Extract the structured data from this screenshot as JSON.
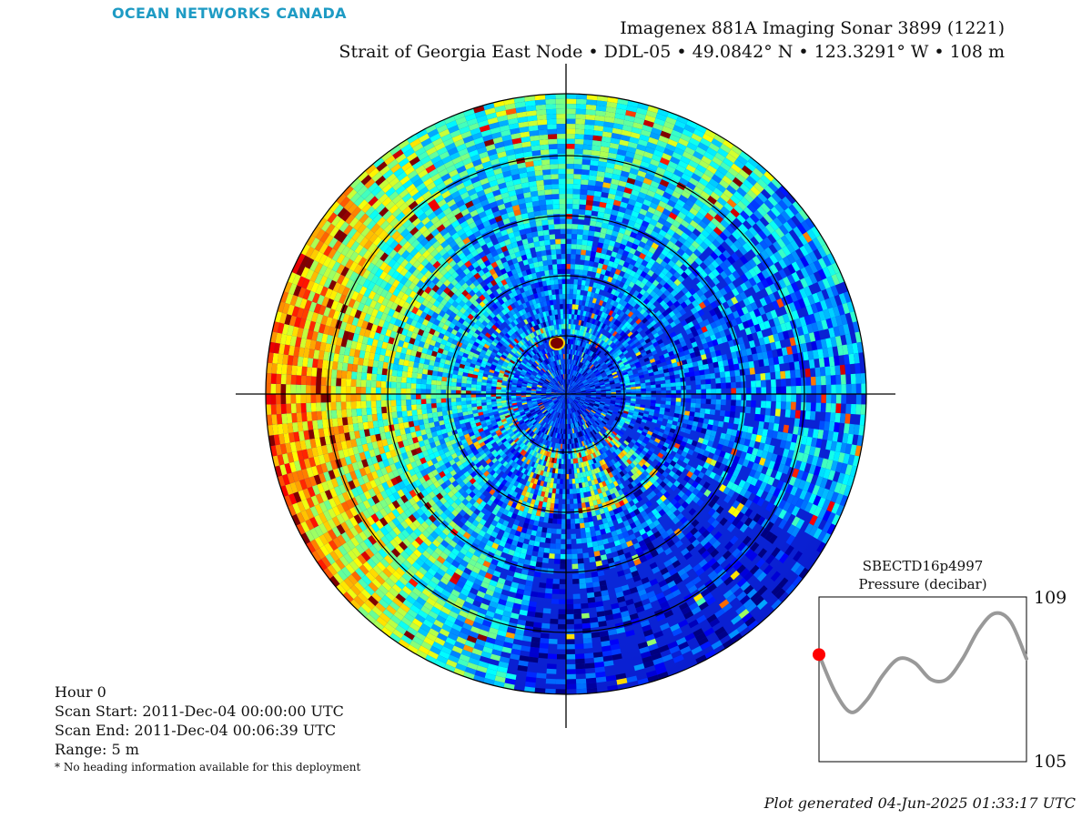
{
  "brand": {
    "logo_text": "OCEAN NETWORKS CANADA",
    "logo_color": "#1e9bc4"
  },
  "header": {
    "line1": "Imagenex 881A Imaging Sonar 3899 (1221)",
    "line2": "Strait of Georgia East Node • DDL-05 • 49.0842° N • 123.3291° W • 108 m"
  },
  "info": {
    "hour": "Hour 0",
    "scan_start": "Scan Start: 2011-Dec-04 00:00:00 UTC",
    "scan_end": "Scan End: 2011-Dec-04 00:06:39 UTC",
    "range": "Range: 5 m",
    "note": "* No heading information available for this deployment"
  },
  "footer": {
    "generated": "Plot generated 04-Jun-2025 01:33:17 UTC"
  },
  "chart_data": [
    {
      "type": "heatmap",
      "name": "sonar polar scan",
      "colormap": "jet",
      "range_rings_m": [
        1,
        2,
        3,
        4,
        5
      ],
      "max_range_m": 5,
      "background_color": "#0a1fd6"
    },
    {
      "type": "line",
      "title": "SBECTD16p4997",
      "subtitle": "Pressure (decibar)",
      "ylim": [
        105,
        109
      ],
      "yticks": [
        "109",
        "105"
      ],
      "series": [
        {
          "values": [
            107.6,
            106.7,
            106.2,
            106.5,
            107.1,
            107.5,
            107.4,
            107.0,
            107.0,
            107.5,
            108.2,
            108.6,
            108.4,
            107.5
          ],
          "color": "#999999"
        }
      ],
      "current_marker": {
        "index": 0,
        "value": 107.6,
        "color": "#ff0000"
      }
    }
  ]
}
